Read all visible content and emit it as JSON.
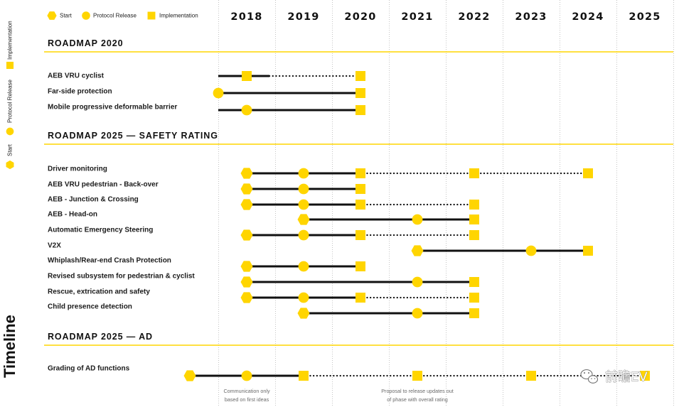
{
  "legend": {
    "items": [
      {
        "type": "start",
        "label": "Start"
      },
      {
        "type": "protocol_release",
        "label": "Protocol Release"
      },
      {
        "type": "implementation",
        "label": "Implementation"
      }
    ]
  },
  "side_title": "Timeline",
  "years": [
    "2018",
    "2019",
    "2020",
    "2021",
    "2022",
    "2023",
    "2024",
    "2025"
  ],
  "colors": {
    "marker": "#FFD500",
    "divider": "#FFD500",
    "line": "#111111"
  },
  "sections": [
    {
      "title": "ROADMAP 2020",
      "rows": [
        {
          "label": "AEB VRU cyclist",
          "segments": [
            {
              "from": 2017.5,
              "to": 2018.4,
              "style": "solid"
            },
            {
              "from": 2018.4,
              "to": 2020,
              "style": "dotted"
            }
          ],
          "markers": [
            {
              "year": 2018,
              "type": "implementation"
            },
            {
              "year": 2020,
              "type": "implementation"
            }
          ]
        },
        {
          "label": "Far-side protection",
          "segments": [
            {
              "from": 2017.5,
              "to": 2020,
              "style": "solid"
            }
          ],
          "markers": [
            {
              "year": 2017.5,
              "type": "protocol_release"
            },
            {
              "year": 2020,
              "type": "implementation"
            }
          ]
        },
        {
          "label": "Mobile progressive deformable barrier",
          "segments": [
            {
              "from": 2017.5,
              "to": 2020,
              "style": "solid"
            }
          ],
          "markers": [
            {
              "year": 2018,
              "type": "protocol_release"
            },
            {
              "year": 2020,
              "type": "implementation"
            }
          ]
        }
      ]
    },
    {
      "title": "ROADMAP 2025 — SAFETY RATING",
      "rows": [
        {
          "label": "Driver monitoring",
          "segments": [
            {
              "from": 2018,
              "to": 2020,
              "style": "solid"
            },
            {
              "from": 2020,
              "to": 2024,
              "style": "dotted"
            }
          ],
          "markers": [
            {
              "year": 2018,
              "type": "start"
            },
            {
              "year": 2019,
              "type": "protocol_release"
            },
            {
              "year": 2020,
              "type": "implementation"
            },
            {
              "year": 2022,
              "type": "implementation"
            },
            {
              "year": 2024,
              "type": "implementation"
            }
          ]
        },
        {
          "label": "AEB VRU pedestrian - Back-over",
          "segments": [
            {
              "from": 2018,
              "to": 2020,
              "style": "solid"
            }
          ],
          "markers": [
            {
              "year": 2018,
              "type": "start"
            },
            {
              "year": 2019,
              "type": "protocol_release"
            },
            {
              "year": 2020,
              "type": "implementation"
            }
          ]
        },
        {
          "label": "AEB - Junction & Crossing",
          "segments": [
            {
              "from": 2018,
              "to": 2020,
              "style": "solid"
            },
            {
              "from": 2020,
              "to": 2022,
              "style": "dotted"
            }
          ],
          "markers": [
            {
              "year": 2018,
              "type": "start"
            },
            {
              "year": 2019,
              "type": "protocol_release"
            },
            {
              "year": 2020,
              "type": "implementation"
            },
            {
              "year": 2022,
              "type": "implementation"
            }
          ]
        },
        {
          "label": "AEB - Head-on",
          "segments": [
            {
              "from": 2019,
              "to": 2022,
              "style": "solid"
            }
          ],
          "markers": [
            {
              "year": 2019,
              "type": "start"
            },
            {
              "year": 2021,
              "type": "protocol_release"
            },
            {
              "year": 2022,
              "type": "implementation"
            }
          ]
        },
        {
          "label": "Automatic Emergency Steering",
          "segments": [
            {
              "from": 2018,
              "to": 2020,
              "style": "solid"
            },
            {
              "from": 2020,
              "to": 2022,
              "style": "dotted"
            }
          ],
          "markers": [
            {
              "year": 2018,
              "type": "start"
            },
            {
              "year": 2019,
              "type": "protocol_release"
            },
            {
              "year": 2020,
              "type": "implementation"
            },
            {
              "year": 2022,
              "type": "implementation"
            }
          ]
        },
        {
          "label": "V2X",
          "segments": [
            {
              "from": 2021,
              "to": 2024,
              "style": "solid"
            }
          ],
          "markers": [
            {
              "year": 2021,
              "type": "start"
            },
            {
              "year": 2023,
              "type": "protocol_release"
            },
            {
              "year": 2024,
              "type": "implementation"
            }
          ]
        },
        {
          "label": "Whiplash/Rear-end Crash Protection",
          "segments": [
            {
              "from": 2018,
              "to": 2020,
              "style": "solid"
            }
          ],
          "markers": [
            {
              "year": 2018,
              "type": "start"
            },
            {
              "year": 2019,
              "type": "protocol_release"
            },
            {
              "year": 2020,
              "type": "implementation"
            }
          ]
        },
        {
          "label": "Revised subsystem for pedestrian & cyclist",
          "segments": [
            {
              "from": 2018,
              "to": 2022,
              "style": "solid"
            }
          ],
          "markers": [
            {
              "year": 2018,
              "type": "start"
            },
            {
              "year": 2021,
              "type": "protocol_release"
            },
            {
              "year": 2022,
              "type": "implementation"
            }
          ]
        },
        {
          "label": "Rescue, extrication and safety",
          "segments": [
            {
              "from": 2018,
              "to": 2020,
              "style": "solid"
            },
            {
              "from": 2020,
              "to": 2022,
              "style": "dotted"
            }
          ],
          "markers": [
            {
              "year": 2018,
              "type": "start"
            },
            {
              "year": 2019,
              "type": "protocol_release"
            },
            {
              "year": 2020,
              "type": "implementation"
            },
            {
              "year": 2022,
              "type": "implementation"
            }
          ]
        },
        {
          "label": "Child presence detection",
          "segments": [
            {
              "from": 2019,
              "to": 2022,
              "style": "solid"
            }
          ],
          "markers": [
            {
              "year": 2019,
              "type": "start"
            },
            {
              "year": 2021,
              "type": "protocol_release"
            },
            {
              "year": 2022,
              "type": "implementation"
            }
          ]
        }
      ]
    },
    {
      "title": "ROADMAP 2025 — AD",
      "rows": [
        {
          "label": "Grading of AD functions",
          "segments": [
            {
              "from": 2017,
              "to": 2019,
              "style": "solid"
            },
            {
              "from": 2019,
              "to": 2025,
              "style": "dotted"
            }
          ],
          "markers": [
            {
              "year": 2017,
              "type": "start"
            },
            {
              "year": 2018,
              "type": "protocol_release"
            },
            {
              "year": 2019,
              "type": "implementation"
            },
            {
              "year": 2021,
              "type": "implementation"
            },
            {
              "year": 2023,
              "type": "implementation"
            },
            {
              "year": 2025,
              "type": "implementation"
            }
          ]
        }
      ]
    }
  ],
  "notes": [
    {
      "lines": [
        "Communication only",
        "based on first ideas"
      ]
    },
    {
      "lines": [
        "Proposal to release updates out",
        "of phase with overall rating"
      ]
    }
  ],
  "watermark": {
    "icon": "wechat-icon",
    "text": "前瞻EV"
  }
}
